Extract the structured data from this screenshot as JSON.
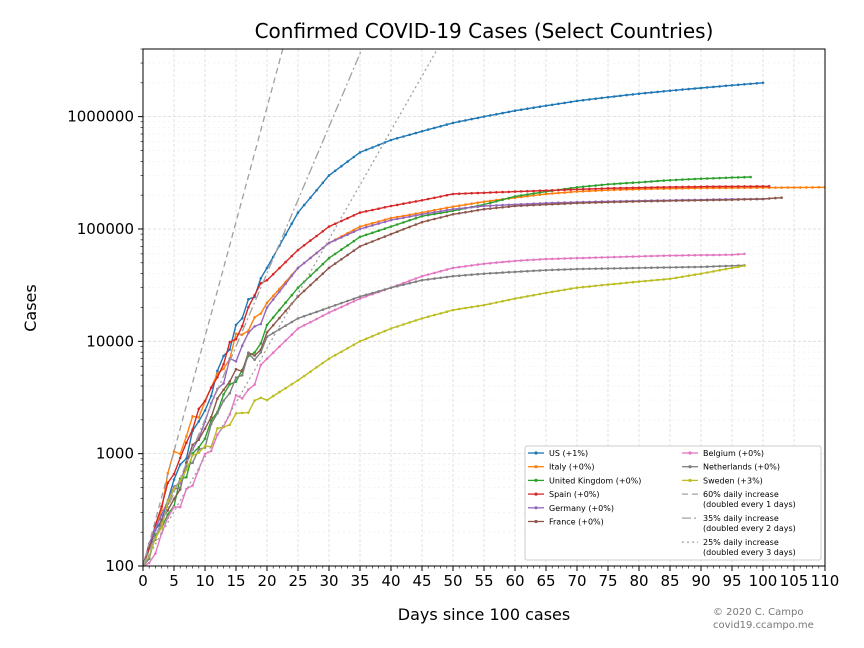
{
  "chart_data": {
    "type": "line",
    "title": "Confirmed COVID-19 Cases (Select Countries)",
    "xlabel": "Days since 100 cases",
    "ylabel": "Cases",
    "xlim": [
      0,
      110
    ],
    "ylim": [
      100,
      4000000
    ],
    "y_scale": "log",
    "x_ticks": [
      0,
      5,
      10,
      15,
      20,
      25,
      30,
      35,
      40,
      45,
      50,
      55,
      60,
      65,
      70,
      75,
      80,
      85,
      90,
      95,
      100,
      105,
      110
    ],
    "x_tick_labels": [
      "0",
      "5",
      "10",
      "15",
      "20",
      "25",
      "30",
      "35",
      "40",
      "45",
      "50",
      "55",
      "60",
      "65",
      "70",
      "75",
      "80",
      "85",
      "90",
      "95",
      "100",
      "105",
      "110"
    ],
    "y_ticks": [
      100,
      1000,
      10000,
      100000,
      1000000
    ],
    "y_tick_labels": [
      "100",
      "1000",
      "10000",
      "100000",
      "1000000"
    ],
    "grid": true,
    "legend_position": "bottom-right",
    "credit": [
      "© 2020 C. Campo",
      "covid19.ccampo.me"
    ],
    "series": [
      {
        "name": "US (+1%)",
        "color": "#1f77b4",
        "last_day": 100,
        "points": [
          [
            0,
            100
          ],
          [
            5,
            600
          ],
          [
            10,
            2500
          ],
          [
            15,
            14000
          ],
          [
            20,
            45000
          ],
          [
            25,
            140000
          ],
          [
            30,
            300000
          ],
          [
            35,
            480000
          ],
          [
            40,
            620000
          ],
          [
            45,
            740000
          ],
          [
            50,
            880000
          ],
          [
            55,
            1000000
          ],
          [
            60,
            1130000
          ],
          [
            65,
            1250000
          ],
          [
            70,
            1380000
          ],
          [
            75,
            1490000
          ],
          [
            80,
            1600000
          ],
          [
            85,
            1700000
          ],
          [
            90,
            1800000
          ],
          [
            95,
            1900000
          ],
          [
            100,
            2000000
          ]
        ]
      },
      {
        "name": "Italy (+0%)",
        "color": "#ff7f0e",
        "last_day": 110,
        "points": [
          [
            0,
            100
          ],
          [
            5,
            900
          ],
          [
            10,
            3000
          ],
          [
            15,
            10000
          ],
          [
            20,
            22000
          ],
          [
            25,
            45000
          ],
          [
            30,
            75000
          ],
          [
            35,
            105000
          ],
          [
            40,
            125000
          ],
          [
            45,
            140000
          ],
          [
            50,
            158000
          ],
          [
            55,
            175000
          ],
          [
            60,
            190000
          ],
          [
            65,
            205000
          ],
          [
            70,
            215000
          ],
          [
            75,
            222000
          ],
          [
            80,
            226000
          ],
          [
            85,
            229000
          ],
          [
            90,
            231000
          ],
          [
            95,
            232000
          ],
          [
            100,
            233000
          ],
          [
            105,
            234000
          ],
          [
            110,
            235000
          ]
        ]
      },
      {
        "name": "United Kingdom (+0%)",
        "color": "#2ca02c",
        "last_day": 98,
        "points": [
          [
            0,
            100
          ],
          [
            5,
            400
          ],
          [
            10,
            1500
          ],
          [
            15,
            5000
          ],
          [
            20,
            14000
          ],
          [
            25,
            30000
          ],
          [
            30,
            55000
          ],
          [
            35,
            85000
          ],
          [
            40,
            105000
          ],
          [
            45,
            130000
          ],
          [
            50,
            145000
          ],
          [
            55,
            165000
          ],
          [
            60,
            195000
          ],
          [
            65,
            215000
          ],
          [
            70,
            235000
          ],
          [
            75,
            250000
          ],
          [
            80,
            260000
          ],
          [
            85,
            272000
          ],
          [
            90,
            280000
          ],
          [
            95,
            287000
          ],
          [
            98,
            290000
          ]
        ]
      },
      {
        "name": "Spain (+0%)",
        "color": "#d62728",
        "last_day": 101,
        "points": [
          [
            0,
            100
          ],
          [
            5,
            700
          ],
          [
            10,
            3000
          ],
          [
            15,
            12000
          ],
          [
            20,
            35000
          ],
          [
            25,
            65000
          ],
          [
            30,
            105000
          ],
          [
            35,
            140000
          ],
          [
            40,
            160000
          ],
          [
            45,
            180000
          ],
          [
            50,
            205000
          ],
          [
            55,
            210000
          ],
          [
            60,
            215000
          ],
          [
            65,
            220000
          ],
          [
            70,
            225000
          ],
          [
            75,
            230000
          ],
          [
            80,
            233000
          ],
          [
            85,
            236000
          ],
          [
            90,
            238000
          ],
          [
            95,
            239000
          ],
          [
            101,
            240000
          ]
        ]
      },
      {
        "name": "Germany (+0%)",
        "color": "#9467bd",
        "last_day": 100,
        "points": [
          [
            0,
            100
          ],
          [
            5,
            500
          ],
          [
            10,
            2000
          ],
          [
            15,
            8000
          ],
          [
            20,
            20000
          ],
          [
            25,
            45000
          ],
          [
            30,
            75000
          ],
          [
            35,
            100000
          ],
          [
            40,
            120000
          ],
          [
            45,
            135000
          ],
          [
            50,
            150000
          ],
          [
            55,
            160000
          ],
          [
            60,
            165000
          ],
          [
            65,
            170000
          ],
          [
            70,
            173000
          ],
          [
            75,
            176000
          ],
          [
            80,
            178000
          ],
          [
            85,
            180000
          ],
          [
            90,
            182000
          ],
          [
            95,
            184000
          ],
          [
            100,
            185000
          ]
        ]
      },
      {
        "name": "France (+0%)",
        "color": "#8c564b",
        "last_day": 103,
        "points": [
          [
            0,
            100
          ],
          [
            5,
            400
          ],
          [
            10,
            2000
          ],
          [
            15,
            5000
          ],
          [
            20,
            12000
          ],
          [
            25,
            25000
          ],
          [
            30,
            45000
          ],
          [
            35,
            70000
          ],
          [
            40,
            90000
          ],
          [
            45,
            115000
          ],
          [
            50,
            135000
          ],
          [
            55,
            150000
          ],
          [
            60,
            160000
          ],
          [
            65,
            165000
          ],
          [
            70,
            170000
          ],
          [
            75,
            173000
          ],
          [
            80,
            176000
          ],
          [
            85,
            178000
          ],
          [
            90,
            180000
          ],
          [
            95,
            182000
          ],
          [
            100,
            185000
          ],
          [
            103,
            190000
          ]
        ]
      },
      {
        "name": "Belgium (+0%)",
        "color": "#e377c2",
        "last_day": 97,
        "points": [
          [
            0,
            100
          ],
          [
            5,
            300
          ],
          [
            10,
            1000
          ],
          [
            15,
            3000
          ],
          [
            20,
            7000
          ],
          [
            25,
            13000
          ],
          [
            30,
            18000
          ],
          [
            35,
            24000
          ],
          [
            40,
            30000
          ],
          [
            45,
            38000
          ],
          [
            50,
            45000
          ],
          [
            55,
            49000
          ],
          [
            60,
            52000
          ],
          [
            65,
            54000
          ],
          [
            70,
            55000
          ],
          [
            75,
            56000
          ],
          [
            80,
            57000
          ],
          [
            85,
            58000
          ],
          [
            90,
            58500
          ],
          [
            95,
            59000
          ],
          [
            97,
            60000
          ]
        ]
      },
      {
        "name": "Netherlands (+0%)",
        "color": "#7f7f7f",
        "last_day": 97,
        "points": [
          [
            0,
            100
          ],
          [
            5,
            500
          ],
          [
            10,
            1200
          ],
          [
            15,
            5000
          ],
          [
            20,
            11000
          ],
          [
            25,
            16000
          ],
          [
            30,
            20000
          ],
          [
            35,
            25000
          ],
          [
            40,
            30000
          ],
          [
            45,
            35000
          ],
          [
            50,
            38000
          ],
          [
            55,
            40000
          ],
          [
            60,
            41500
          ],
          [
            65,
            43000
          ],
          [
            70,
            44000
          ],
          [
            75,
            44500
          ],
          [
            80,
            45000
          ],
          [
            85,
            45500
          ],
          [
            90,
            46000
          ],
          [
            95,
            47000
          ],
          [
            97,
            47500
          ]
        ]
      },
      {
        "name": "Sweden (+3%)",
        "color": "#bcbd22",
        "last_day": 97,
        "points": [
          [
            0,
            100
          ],
          [
            5,
            500
          ],
          [
            10,
            1200
          ],
          [
            15,
            2000
          ],
          [
            20,
            3000
          ],
          [
            25,
            4500
          ],
          [
            30,
            7000
          ],
          [
            35,
            10000
          ],
          [
            40,
            13000
          ],
          [
            45,
            16000
          ],
          [
            50,
            19000
          ],
          [
            55,
            21000
          ],
          [
            60,
            24000
          ],
          [
            65,
            27000
          ],
          [
            70,
            30000
          ],
          [
            75,
            32000
          ],
          [
            80,
            34000
          ],
          [
            85,
            36000
          ],
          [
            90,
            40000
          ],
          [
            95,
            45000
          ],
          [
            97,
            47000
          ]
        ]
      },
      {
        "name": "60% daily increase\n(doubled every 1 days)",
        "color": "#a0a0a0",
        "dash": "6,4",
        "rate": 0.6,
        "width": 1.3
      },
      {
        "name": "35% daily increase\n(doubled every 2 days)",
        "color": "#a0a0a0",
        "dash": "9,3,2,3",
        "rate": 0.35,
        "width": 1.3
      },
      {
        "name": "25% daily increase\n(doubled every 3 days)",
        "color": "#a0a0a0",
        "dash": "2,3",
        "rate": 0.25,
        "width": 1.3
      }
    ]
  }
}
